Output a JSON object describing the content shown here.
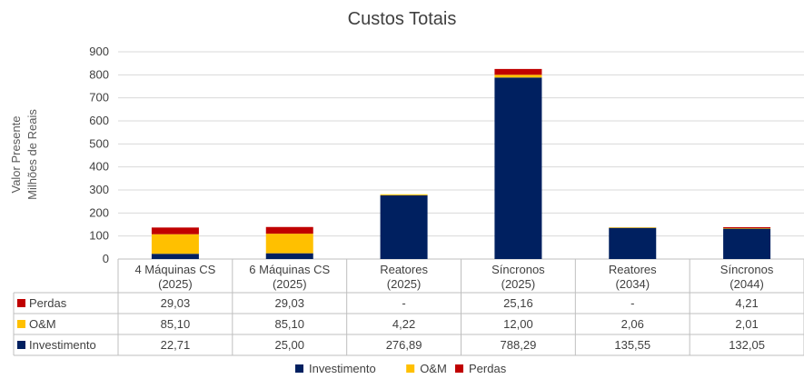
{
  "chart_data": {
    "type": "bar",
    "stacked": true,
    "title": "Custos Totais",
    "ylabel_lines": [
      "Valor Presente",
      "Milhões de Reais"
    ],
    "ylim": [
      0,
      900
    ],
    "yticks": [
      0,
      100,
      200,
      300,
      400,
      500,
      600,
      700,
      800,
      900
    ],
    "grid": true,
    "legend_position": "bottom",
    "categories": [
      [
        "4 Máquinas CS",
        "(2025)"
      ],
      [
        "6 Máquinas CS",
        "(2025)"
      ],
      [
        "Reatores",
        "(2025)"
      ],
      [
        "Síncronos",
        "(2025)"
      ],
      [
        "Reatores",
        "(2034)"
      ],
      [
        "Síncronos",
        "(2044)"
      ]
    ],
    "series": [
      {
        "name": "Investimento",
        "color": "#002060",
        "values": [
          22.71,
          25.0,
          276.89,
          788.29,
          135.55,
          132.05
        ],
        "labels": [
          "22,71",
          "25,00",
          "276,89",
          "788,29",
          "135,55",
          "132,05"
        ]
      },
      {
        "name": "O&M",
        "color": "#FFC000",
        "values": [
          85.1,
          85.1,
          4.22,
          12.0,
          2.06,
          2.01
        ],
        "labels": [
          "85,10",
          "85,10",
          "4,22",
          "12,00",
          "2,06",
          "2,01"
        ]
      },
      {
        "name": "Perdas",
        "color": "#C00000",
        "values": [
          29.03,
          29.03,
          0,
          25.16,
          0,
          4.21
        ],
        "labels": [
          "29,03",
          "29,03",
          "-",
          "25,16",
          "-",
          "4,21"
        ]
      }
    ],
    "table_row_order": [
      "Perdas",
      "O&M",
      "Investimento"
    ],
    "legend_order": [
      "Investimento",
      "O&M",
      "Perdas"
    ]
  }
}
